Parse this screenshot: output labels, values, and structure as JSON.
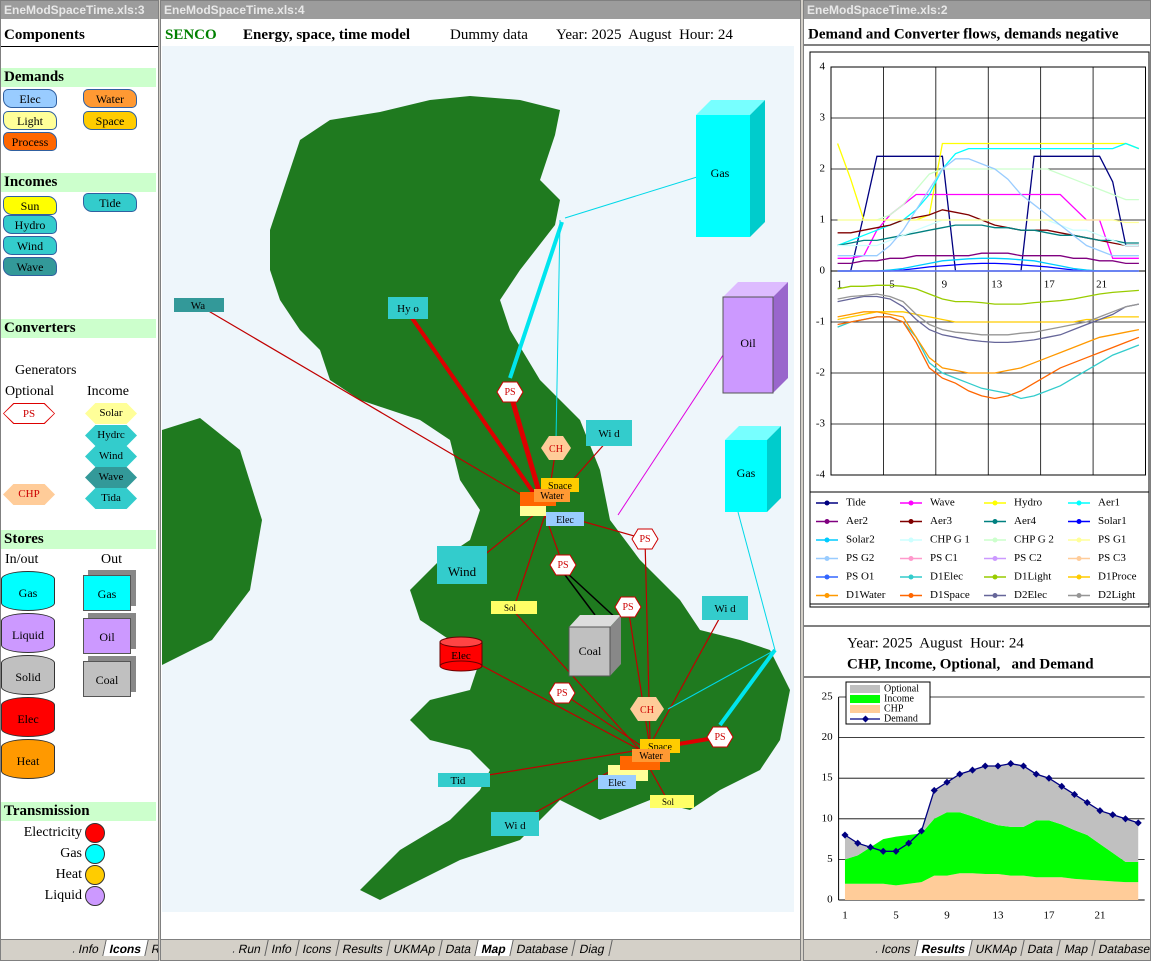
{
  "windows": [
    {
      "title": "EneModSpaceTime.xls:3",
      "tabs": [
        "Info",
        "Icons",
        "R"
      ]
    },
    {
      "title": "EneModSpaceTime.xls:4",
      "tabs": [
        "Run",
        "Info",
        "Icons",
        "Results",
        "UKMAp",
        "Data",
        "Map",
        "Database",
        "Diag"
      ]
    },
    {
      "title": "EneModSpaceTime.xls:2",
      "tabs": [
        "Icons",
        "Results",
        "UKMAp",
        "Data",
        "Map",
        "Database"
      ]
    }
  ],
  "components": {
    "title": "Components",
    "demands": {
      "title": "Demands",
      "items": [
        "Elec",
        "Water",
        "Light",
        "Space",
        "Process"
      ]
    },
    "incomes": {
      "title": "Incomes",
      "items": [
        "Sun",
        "Tide",
        "Hydro",
        "Wind",
        "Wave"
      ]
    },
    "converters": {
      "title": "Converters",
      "generators": "Generators",
      "optional": "Optional",
      "income": "Income",
      "optional_items": [
        "PS",
        "CHP"
      ],
      "income_items": [
        "Solar",
        "Hydrc",
        "Wind",
        "Wave",
        "Tida"
      ]
    },
    "stores": {
      "title": "Stores",
      "inout": "In/out",
      "out": "Out",
      "inout_items": [
        "Gas",
        "Liquid",
        "Solid",
        "Elec",
        "Heat"
      ],
      "out_items": [
        "Gas",
        "Oil",
        "Coal"
      ]
    },
    "transmission": {
      "title": "Transmission",
      "items": [
        "Electricity",
        "Gas",
        "Heat",
        "Liquid"
      ]
    }
  },
  "map": {
    "header": [
      "SENCO",
      "Energy, space, time model",
      "Dummy data",
      "Year: 2025  August  Hour: 24"
    ],
    "stores": [
      "Gas",
      "Oil",
      "Gas",
      "Coal",
      "Elec"
    ],
    "converters": [
      "PS",
      "PS",
      "PS",
      "PS",
      "PS",
      "PS",
      "CH",
      "CH"
    ],
    "incomes": [
      "Wa",
      "Hy o",
      "Wi d",
      "Wind",
      "Wi d",
      "Tid",
      "Wi d",
      "Sol",
      "Sol"
    ],
    "demands": [
      "Space",
      "Water",
      "Elec",
      "Space",
      "Water",
      "Elec"
    ]
  },
  "chart_data": [
    {
      "type": "line",
      "title": "Demand and Converter flows, demands negative",
      "categories": [
        "1",
        null,
        null,
        null,
        "5",
        null,
        null,
        null,
        "9",
        null,
        null,
        null,
        "13",
        null,
        null,
        null,
        "17",
        null,
        null,
        null,
        "21",
        null,
        null,
        null
      ],
      "ylim": [
        -4,
        4
      ],
      "yticks": [
        -4,
        -3,
        -2,
        -1,
        0,
        1,
        2,
        3,
        4
      ],
      "grid": true,
      "series": [
        {
          "name": "Tide",
          "color": "#000080",
          "values": [
            0,
            0,
            1.1,
            2.25,
            2.25,
            2.25,
            2.25,
            2.25,
            2.25,
            0,
            0,
            0,
            0,
            0,
            0,
            2.25,
            2.25,
            2.25,
            2.25,
            2.25,
            2.25,
            1.75,
            0.5,
            0.5
          ]
        },
        {
          "name": "Wave",
          "color": "#ff00ff",
          "values": [
            0.25,
            0.25,
            0.3,
            0.8,
            1.1,
            1.3,
            1.5,
            1.5,
            1.5,
            1.5,
            1.5,
            1.5,
            1.5,
            1.5,
            1.5,
            1.5,
            1.5,
            1.5,
            1.25,
            1,
            1,
            0.25,
            0.25,
            0.25
          ]
        },
        {
          "name": "Hydro",
          "color": "#ffff00",
          "values": [
            2.5,
            1.8,
            1,
            1,
            1,
            1,
            1,
            1.1,
            2.5,
            2.5,
            2.5,
            2.5,
            2.5,
            2.5,
            2.5,
            2.5,
            2.5,
            2.5,
            2.5,
            2.5,
            2.5,
            2.5,
            2.5,
            2.4
          ]
        },
        {
          "name": "Aer1",
          "color": "#00ffff",
          "values": [
            0.5,
            0.6,
            0.7,
            0.8,
            0.9,
            1,
            1.2,
            1.5,
            2,
            2.3,
            2.4,
            2.4,
            2.4,
            2.4,
            2.4,
            2.4,
            2.4,
            2.4,
            2.4,
            2.4,
            2.4,
            2.4,
            2.5,
            2.4
          ]
        },
        {
          "name": "Aer2",
          "color": "#800080",
          "values": [
            0.15,
            0.15,
            0.2,
            0.2,
            0.25,
            0.25,
            0.3,
            0.3,
            0.3,
            0.3,
            0.3,
            0.35,
            0.35,
            0.35,
            0.3,
            0.3,
            0.3,
            0.3,
            0.25,
            0.25,
            0.2,
            0.2,
            0.15,
            0.15
          ]
        },
        {
          "name": "Aer3",
          "color": "#800000",
          "values": [
            0.75,
            0.75,
            0.8,
            0.85,
            0.9,
            1,
            1.05,
            1.1,
            1.2,
            1.15,
            1.1,
            1,
            0.9,
            0.85,
            0.8,
            0.8,
            0.8,
            0.75,
            0.7,
            0.65,
            0.6,
            0.55,
            0.5,
            0.5
          ]
        },
        {
          "name": "Aer4",
          "color": "#008080",
          "values": [
            0.5,
            0.55,
            0.6,
            0.6,
            0.65,
            0.7,
            0.75,
            0.8,
            0.85,
            0.9,
            0.9,
            0.9,
            0.85,
            0.85,
            0.8,
            0.8,
            0.75,
            0.7,
            0.7,
            0.65,
            0.6,
            0.6,
            0.55,
            0.55
          ]
        },
        {
          "name": "Solar1",
          "color": "#0000ff",
          "values": [
            0,
            0,
            0,
            0,
            0,
            0.02,
            0.05,
            0.08,
            0.1,
            0.12,
            0.14,
            0.15,
            0.15,
            0.14,
            0.12,
            0.1,
            0.08,
            0.05,
            0.02,
            0,
            0,
            0,
            0,
            0
          ]
        },
        {
          "name": "Solar2",
          "color": "#00ccff",
          "values": [
            0,
            0,
            0,
            0,
            0.02,
            0.05,
            0.1,
            0.15,
            0.2,
            0.22,
            0.24,
            0.25,
            0.25,
            0.24,
            0.22,
            0.2,
            0.15,
            0.1,
            0.05,
            0.02,
            0,
            0,
            0,
            0
          ]
        },
        {
          "name": "CHP G 1",
          "color": "#ccffff",
          "values": [
            0.5,
            0.5,
            0.5,
            0.5,
            0.6,
            0.7,
            0.8,
            0.9,
            1,
            1,
            1,
            1,
            1,
            1,
            1,
            1,
            1,
            0.9,
            0.8,
            0.8,
            0.7,
            0.6,
            0.5,
            0.5
          ]
        },
        {
          "name": "CHP G 2",
          "color": "#ccffcc",
          "values": [
            1,
            1,
            1,
            1,
            1.1,
            1.3,
            1.6,
            1.9,
            2,
            2,
            2,
            2,
            2,
            2,
            2,
            2,
            2,
            1.9,
            1.8,
            1.7,
            1.6,
            1.5,
            1.4,
            1.4
          ]
        },
        {
          "name": "PS G1",
          "color": "#ffff99",
          "values": [
            1,
            1,
            1,
            1,
            1,
            1,
            1,
            1,
            1,
            1,
            1,
            1,
            1,
            1,
            1,
            1,
            1,
            1,
            1,
            1,
            1,
            1,
            0.95,
            0.95
          ]
        },
        {
          "name": "PS G2",
          "color": "#99ccff",
          "values": [
            0.3,
            0.3,
            0.3,
            0.3,
            0.5,
            0.8,
            1.2,
            1.6,
            2,
            2.2,
            2.2,
            2.1,
            2,
            1.8,
            1.5,
            1.3,
            1.1,
            0.9,
            0.7,
            0.5,
            0.4,
            0.3,
            0.3,
            0.3
          ]
        },
        {
          "name": "PS C1",
          "color": "#ff99cc",
          "values": [
            0,
            0,
            0,
            0,
            0,
            0,
            0,
            0,
            0,
            0,
            0,
            0,
            0,
            0,
            0,
            0,
            0,
            0,
            0,
            0,
            0,
            0,
            0,
            0
          ]
        },
        {
          "name": "PS C2",
          "color": "#cc99ff",
          "values": [
            0,
            0,
            0,
            0,
            0,
            0,
            0,
            0,
            0,
            0,
            0,
            0,
            0,
            0,
            0,
            0,
            0,
            0,
            0,
            0,
            0,
            0,
            0,
            0
          ]
        },
        {
          "name": "PS C3",
          "color": "#ffcc99",
          "values": [
            0,
            0,
            0,
            0,
            0,
            0,
            0,
            0,
            0,
            0,
            0,
            0,
            0,
            0,
            0,
            0,
            0,
            0,
            0,
            0,
            0,
            0,
            0,
            0
          ]
        },
        {
          "name": "PS O1",
          "color": "#3366ff",
          "values": [
            0,
            0,
            0,
            0,
            0,
            0,
            0,
            0,
            0,
            0,
            0,
            0,
            0,
            0,
            0,
            0,
            0,
            0,
            0,
            0,
            0,
            0,
            0,
            0
          ]
        },
        {
          "name": "D1Elec",
          "color": "#33cccc",
          "values": [
            -1.1,
            -1,
            -0.95,
            -0.9,
            -0.9,
            -1,
            -1.3,
            -1.8,
            -2,
            -2.1,
            -2.2,
            -2.3,
            -2.35,
            -2.4,
            -2.5,
            -2.45,
            -2.35,
            -2.25,
            -2.1,
            -1.95,
            -1.8,
            -1.65,
            -1.55,
            -1.45
          ]
        },
        {
          "name": "D1Light",
          "color": "#99cc00",
          "values": [
            -0.35,
            -0.3,
            -0.3,
            -0.28,
            -0.28,
            -0.3,
            -0.35,
            -0.45,
            -0.55,
            -0.6,
            -0.6,
            -0.62,
            -0.65,
            -0.65,
            -0.65,
            -0.62,
            -0.6,
            -0.58,
            -0.55,
            -0.5,
            -0.45,
            -0.42,
            -0.4,
            -0.38
          ]
        },
        {
          "name": "D1Proce",
          "color": "#ffcc00",
          "values": [
            -0.95,
            -0.9,
            -0.85,
            -0.8,
            -0.8,
            -0.8,
            -0.85,
            -0.9,
            -0.95,
            -1,
            -1,
            -1,
            -1,
            -1,
            -1,
            -1,
            -1,
            -1,
            -1,
            -0.95,
            -0.95,
            -0.9,
            -0.9,
            -0.9
          ]
        },
        {
          "name": "D1Water",
          "color": "#ff9900",
          "values": [
            -0.9,
            -0.85,
            -0.8,
            -0.8,
            -0.85,
            -0.9,
            -1.3,
            -1.7,
            -1.9,
            -1.95,
            -2,
            -2,
            -2,
            -1.95,
            -1.9,
            -1.8,
            -1.7,
            -1.6,
            -1.5,
            -1.4,
            -1.3,
            -1.25,
            -1.2,
            -1.15
          ]
        },
        {
          "name": "D1Space",
          "color": "#ff6600",
          "values": [
            -1.05,
            -1,
            -0.95,
            -0.9,
            -0.9,
            -1,
            -1.4,
            -1.9,
            -2.1,
            -2.2,
            -2.35,
            -2.45,
            -2.5,
            -2.45,
            -2.35,
            -2.2,
            -2.05,
            -1.9,
            -1.8,
            -1.7,
            -1.6,
            -1.5,
            -1.4,
            -1.3
          ]
        },
        {
          "name": "D2Elec",
          "color": "#666699",
          "values": [
            -0.6,
            -0.55,
            -0.5,
            -0.5,
            -0.55,
            -0.7,
            -0.95,
            -1.15,
            -1.25,
            -1.3,
            -1.35,
            -1.38,
            -1.4,
            -1.4,
            -1.38,
            -1.35,
            -1.3,
            -1.25,
            -1.15,
            -1.05,
            -0.95,
            -0.85,
            -0.7,
            -0.65
          ]
        },
        {
          "name": "D2Light",
          "color": "#969696",
          "values": [
            -0.55,
            -0.5,
            -0.48,
            -0.45,
            -0.5,
            -0.6,
            -0.85,
            -1.05,
            -1.15,
            -1.2,
            -1.22,
            -1.25,
            -1.25,
            -1.25,
            -1.22,
            -1.2,
            -1.15,
            -1.1,
            -1.05,
            -1,
            -0.9,
            -0.8,
            -0.7,
            -0.65
          ]
        }
      ]
    },
    {
      "type": "area",
      "subtitle": "Year: 2025  August  Hour: 24",
      "title": "CHP, Income, Optional,   and Demand",
      "categories": [
        "1",
        null,
        null,
        null,
        "5",
        null,
        null,
        null,
        "9",
        null,
        null,
        null,
        "13",
        null,
        null,
        null,
        "17",
        null,
        null,
        null,
        "21",
        null,
        null,
        null
      ],
      "ylim": [
        0,
        25
      ],
      "yticks": [
        0,
        5,
        10,
        15,
        20,
        25
      ],
      "grid": true,
      "series": [
        {
          "name": "Optional",
          "color": "#c0c0c0",
          "values": [
            3,
            1.5,
            0,
            0,
            0,
            0,
            0,
            3.5,
            3.7,
            4.7,
            5.7,
            6.8,
            7.3,
            7.8,
            7.5,
            5.7,
            5.2,
            4.7,
            4.4,
            4,
            4.1,
            4.7,
            5.3,
            4.8
          ]
        },
        {
          "name": "Income",
          "color": "#00ff00",
          "values": [
            3,
            3.5,
            4.5,
            5.5,
            6,
            6,
            6,
            7,
            7.8,
            7.5,
            7,
            6.5,
            6,
            6,
            6,
            7,
            7,
            6.5,
            6,
            5.5,
            4.5,
            3.5,
            2.5,
            2.5
          ]
        },
        {
          "name": "CHP",
          "color": "#ffcc99",
          "values": [
            2,
            2,
            2,
            2,
            1.8,
            2,
            2.2,
            3,
            3,
            3.3,
            3.3,
            3.2,
            3.2,
            3,
            3,
            2.8,
            2.8,
            2.8,
            2.6,
            2.5,
            2.4,
            2.3,
            2.2,
            2.2
          ]
        },
        {
          "name": "Demand",
          "color": "#000080",
          "type": "line",
          "values": [
            8,
            7,
            6.5,
            6,
            6,
            7,
            8.5,
            13.5,
            14.5,
            15.5,
            16,
            16.5,
            16.5,
            16.8,
            16.5,
            15.5,
            15,
            14,
            13,
            12,
            11,
            10.5,
            10,
            9.5
          ]
        }
      ]
    }
  ]
}
